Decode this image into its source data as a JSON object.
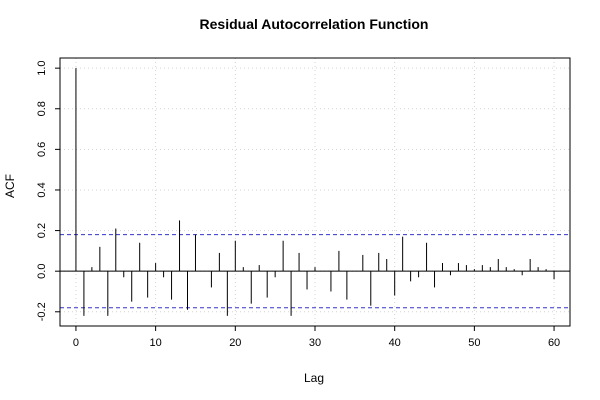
{
  "chart_data": {
    "type": "bar",
    "title": "Residual Autocorrelation Function",
    "xlabel": "Lag",
    "ylabel": "ACF",
    "xlim": [
      -2,
      62
    ],
    "ylim": [
      -0.27,
      1.05
    ],
    "xticks": [
      "0",
      "10",
      "20",
      "30",
      "40",
      "50",
      "60"
    ],
    "yticks": [
      "-0.2",
      "0.0",
      "0.2",
      "0.4",
      "0.6",
      "0.8",
      "1.0"
    ],
    "confidence_band": [
      0.18,
      -0.18
    ],
    "grid": true,
    "lags": [
      0,
      1,
      2,
      3,
      4,
      5,
      6,
      7,
      8,
      9,
      10,
      11,
      12,
      13,
      14,
      15,
      16,
      17,
      18,
      19,
      20,
      21,
      22,
      23,
      24,
      25,
      26,
      27,
      28,
      29,
      30,
      31,
      32,
      33,
      34,
      35,
      36,
      37,
      38,
      39,
      40,
      41,
      42,
      43,
      44,
      45,
      46,
      47,
      48,
      49,
      50,
      51,
      52,
      53,
      54,
      55,
      56,
      57,
      58,
      59,
      60
    ],
    "values": [
      1.0,
      -0.22,
      0.02,
      0.12,
      -0.22,
      0.21,
      -0.03,
      -0.15,
      0.14,
      -0.13,
      0.04,
      -0.03,
      -0.14,
      0.25,
      -0.19,
      0.18,
      0.0,
      -0.08,
      0.09,
      -0.22,
      0.15,
      0.02,
      -0.16,
      0.03,
      -0.13,
      -0.03,
      0.15,
      -0.22,
      0.09,
      -0.09,
      0.02,
      0.0,
      -0.1,
      0.1,
      -0.14,
      0.0,
      0.08,
      -0.17,
      0.09,
      0.06,
      -0.12,
      0.17,
      -0.05,
      -0.03,
      0.14,
      -0.08,
      0.04,
      -0.02,
      0.04,
      0.03,
      0.01,
      0.03,
      0.02,
      0.06,
      0.02,
      0.01,
      -0.02,
      0.06,
      0.02,
      0.01,
      -0.04
    ],
    "colors": {
      "bars": "#000000",
      "confidence": "#3333cc",
      "grid": "#d3d3d3",
      "frame": "#000000"
    }
  }
}
